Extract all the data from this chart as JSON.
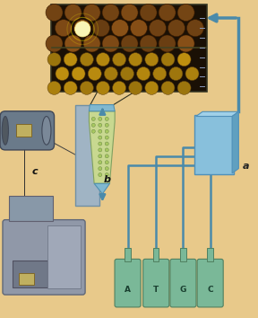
{
  "bg_color": "#e8c98a",
  "labels": {
    "a": [
      0.91,
      0.415
    ],
    "b": [
      0.415,
      0.535
    ],
    "c": [
      0.135,
      0.565
    ]
  },
  "label_fontsize": 8,
  "microscope_color": "#6a7a8a",
  "chip_color": "#c8b86a",
  "flow_plate_color": "#a0b4c4",
  "flow_cell_color": "#b8d090",
  "bottle_color": "#7ab898",
  "bottle_labels": [
    "A",
    "T",
    "G",
    "C"
  ],
  "arrow_color": "#4a8aaa",
  "panel_a_color": "#90bcd8",
  "computer_color": "#9098a8",
  "screen_color": "#8898a8",
  "inset_border": "#445533",
  "inset_top_bg": "#6a4020",
  "inset_bot_bg": "#b89030"
}
